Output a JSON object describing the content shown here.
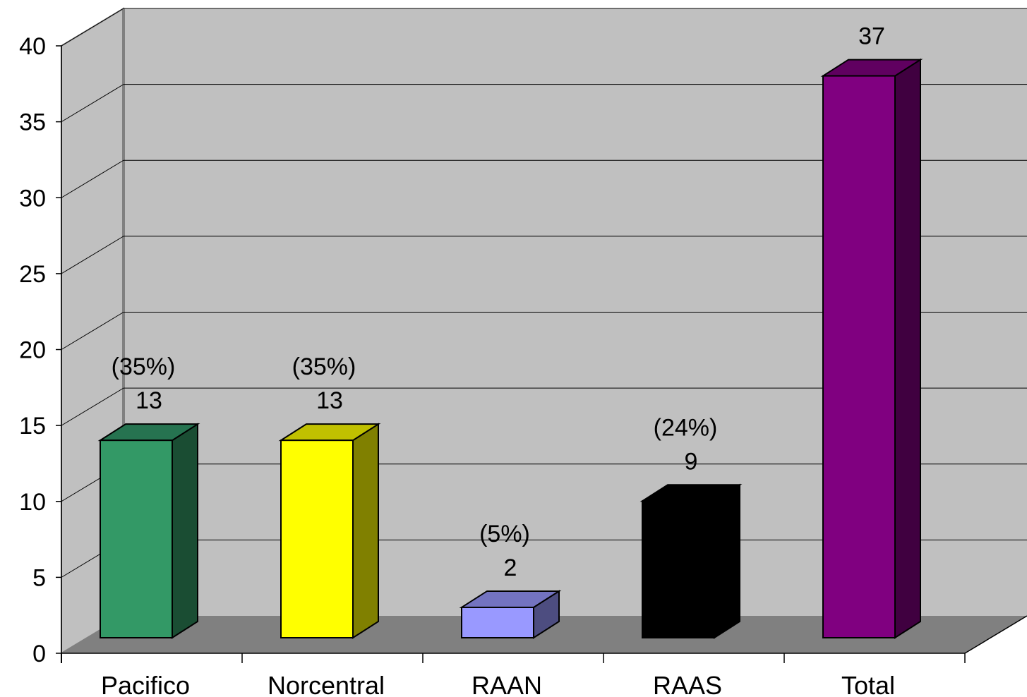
{
  "chart_data": {
    "type": "bar",
    "categories": [
      "Pacifico",
      "Norcentral",
      "RAAN",
      "RAAS",
      "Total"
    ],
    "values": [
      13,
      13,
      2,
      9,
      37
    ],
    "value_labels": [
      "13",
      "13",
      "2",
      "9",
      "37"
    ],
    "percent_labels": [
      "(35%)",
      "(35%)",
      "(5%)",
      "(24%)",
      ""
    ],
    "ylim": [
      0,
      40
    ],
    "yticks": [
      "0",
      "5",
      "10",
      "15",
      "20",
      "25",
      "30",
      "35",
      "40"
    ],
    "grid": true,
    "legend": "none",
    "style": "3d-column",
    "colors": {
      "front": [
        "#339966",
        "#ffff00",
        "#9999ff",
        "#000000",
        "#800080"
      ],
      "side": [
        "#1a4d33",
        "#808000",
        "#4d4d80",
        "#000000",
        "#400040"
      ],
      "top": [
        "#267350",
        "#c0c000",
        "#7373c0",
        "#000000",
        "#600060"
      ],
      "back_wall": "#c0c0c0",
      "floor": "#808080"
    }
  }
}
